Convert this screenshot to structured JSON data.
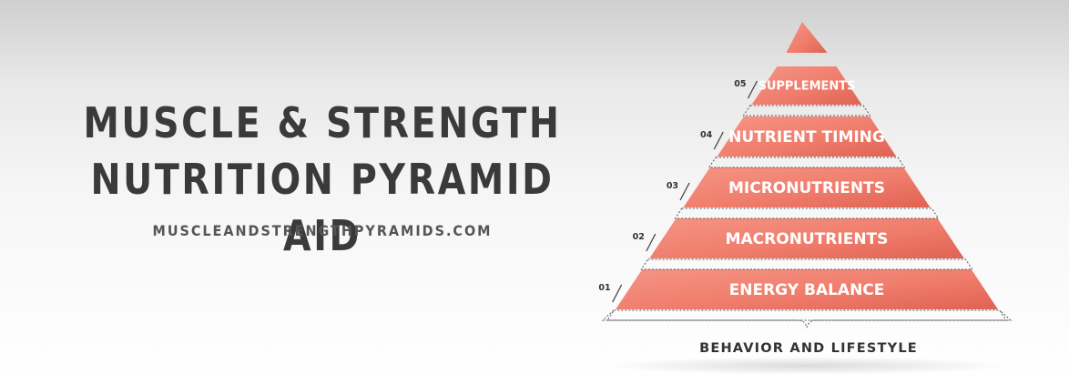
{
  "header": {
    "title_line1": "MUSCLE & STRENGTH",
    "title_line2": "NUTRITION PYRAMID AID",
    "url": "MUSCLEANDSTRENGTHPYRAMIDS.COM"
  },
  "pyramid": {
    "tiers": [
      {
        "number": "01",
        "label": "ENERGY BALANCE"
      },
      {
        "number": "02",
        "label": "MACRONUTRIENTS"
      },
      {
        "number": "03",
        "label": "MICRONUTRIENTS"
      },
      {
        "number": "04",
        "label": "NUTRIENT TIMING"
      },
      {
        "number": "05",
        "label": "SUPPLEMENTS"
      }
    ],
    "base_label": "BEHAVIOR AND LIFESTYLE"
  },
  "colors": {
    "tier_fill": "#f07d6c",
    "tier_highlight": "#f59485",
    "tier_shadow": "#e06252",
    "title_text": "#3a3a3a",
    "url_text": "#555555",
    "dash_line": "#555555"
  }
}
